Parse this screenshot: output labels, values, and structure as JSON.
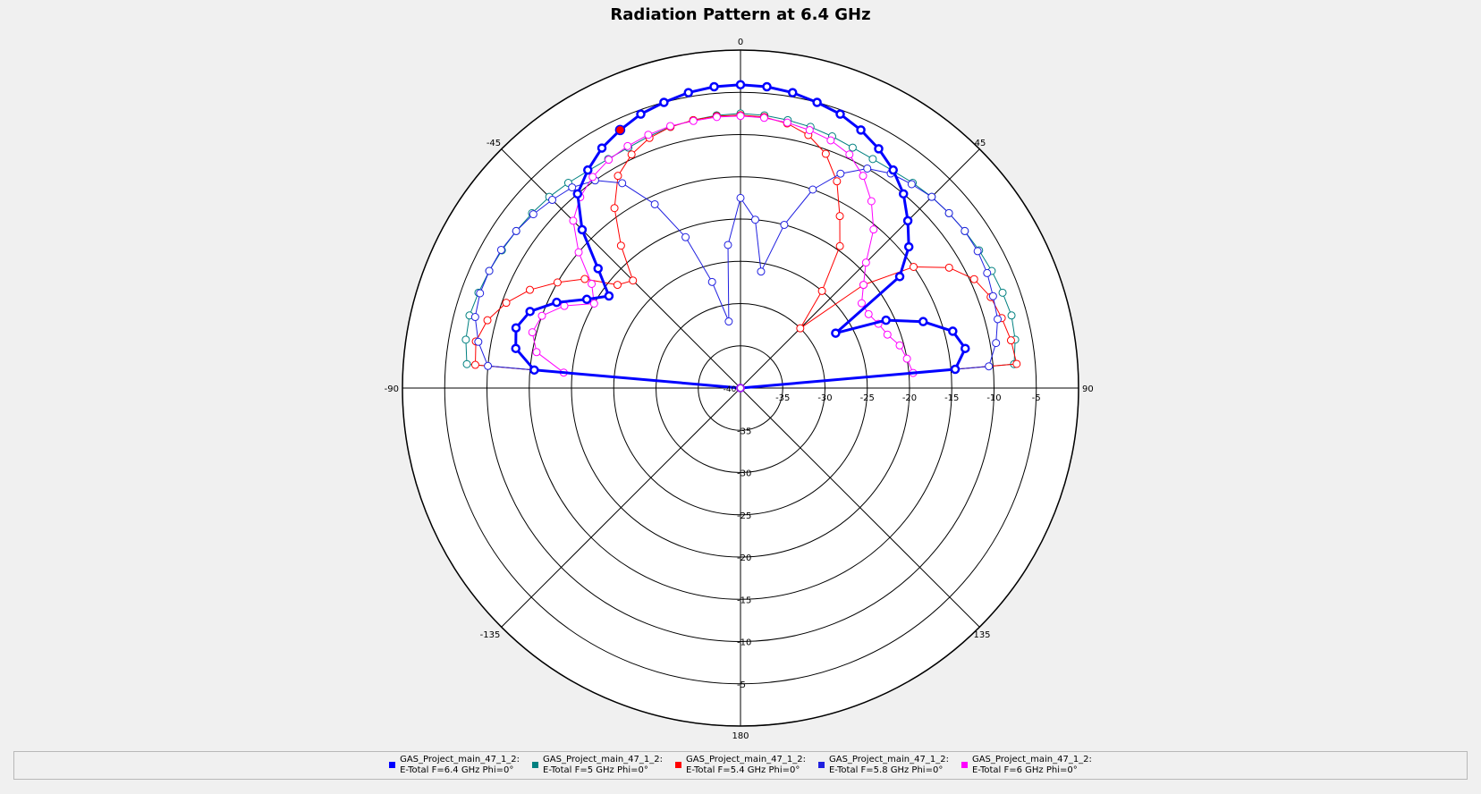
{
  "chart_data": {
    "type": "polar",
    "title": "Radiation Pattern at 6.4 GHz",
    "radial_range": [
      -40,
      0
    ],
    "radial_ticks_display": [
      "-35",
      "-30",
      "-25",
      "-20",
      "-15",
      "-10",
      "-5"
    ],
    "angle_ticks_display": [
      "0",
      "45",
      "90",
      "135",
      "180",
      "-135",
      "-90",
      "-45"
    ],
    "series": [
      {
        "name": "GAS_Project_main_47_1_2:",
        "sub": "E-Total  F=5 GHz  Phi=0°",
        "color": "#008080",
        "width": 1,
        "theta": [
          -90,
          -85,
          -80,
          -75,
          -70,
          -65,
          -60,
          -55,
          -50,
          -45,
          -40,
          -35,
          -30,
          -25,
          -20,
          -15,
          -10,
          -5,
          0,
          5,
          10,
          15,
          20,
          25,
          30,
          35,
          40,
          45,
          50,
          55,
          60,
          65,
          70,
          75,
          80,
          85,
          90
        ],
        "r": [
          -40,
          -7.5,
          -7.0,
          -6.8,
          -7.0,
          -7.2,
          -7.4,
          -7.6,
          -7.8,
          -8.0,
          -8.3,
          -8.6,
          -8.7,
          -8.6,
          -8.3,
          -8.0,
          -7.8,
          -7.6,
          -7.5,
          -7.6,
          -7.8,
          -8.0,
          -8.3,
          -8.6,
          -8.7,
          -8.6,
          -8.3,
          -8.0,
          -7.8,
          -7.6,
          -7.4,
          -7.2,
          -7.0,
          -6.8,
          -7.0,
          -7.5,
          -40
        ]
      },
      {
        "name": "GAS_Project_main_47_1_2:",
        "sub": "E-Total  F=5.4 GHz  Phi=0°",
        "color": "#ff0000",
        "width": 1,
        "theta": [
          -90,
          -85,
          -80,
          -75,
          -70,
          -65,
          -60,
          -55,
          -50,
          -45,
          -40,
          -35,
          -30,
          -25,
          -20,
          -15,
          -10,
          -5,
          0,
          5,
          10,
          15,
          20,
          25,
          30,
          35,
          40,
          45,
          50,
          55,
          60,
          65,
          70,
          75,
          80,
          85,
          90
        ],
        "r": [
          -40,
          -8.5,
          -8.2,
          -9.0,
          -10.5,
          -12.5,
          -15.0,
          -17.5,
          -21.0,
          -22.0,
          -18.0,
          -14.0,
          -11.0,
          -9.5,
          -8.5,
          -8.0,
          -7.8,
          -7.7,
          -7.7,
          -7.8,
          -8.2,
          -9.0,
          -10.5,
          -13.0,
          -16.5,
          -19.5,
          -25.0,
          -30.0,
          -21.0,
          -15.0,
          -11.5,
          -9.5,
          -8.5,
          -8.0,
          -7.5,
          -7.2,
          -40
        ]
      },
      {
        "name": "GAS_Project_main_47_1_2:",
        "sub": "E-Total  F=5.8 GHz  Phi=0°",
        "color": "#2020e0",
        "width": 1,
        "theta": [
          -90,
          -85,
          -80,
          -75,
          -70,
          -65,
          -60,
          -55,
          -50,
          -45,
          -40,
          -35,
          -30,
          -25,
          -20,
          -15,
          -10,
          -5,
          0,
          5,
          10,
          15,
          20,
          25,
          30,
          35,
          40,
          45,
          50,
          55,
          60,
          65,
          70,
          75,
          80,
          85,
          90
        ],
        "r": [
          -40,
          -10.0,
          -8.5,
          -7.5,
          -7.2,
          -7.2,
          -7.3,
          -7.6,
          -8.0,
          -8.5,
          -9.0,
          -10.0,
          -12.0,
          -16.0,
          -21.0,
          -27.0,
          -32.0,
          -23.0,
          -17.5,
          -20.0,
          -26.0,
          -20.0,
          -15.0,
          -12.0,
          -10.0,
          -9.0,
          -8.5,
          -8.0,
          -7.8,
          -7.6,
          -7.6,
          -7.8,
          -8.2,
          -8.5,
          -9.3,
          -10.5,
          -40
        ]
      },
      {
        "name": "GAS_Project_main_47_1_2:",
        "sub": "E-Total  F=6 GHz  Phi=0°",
        "color": "#ff00ff",
        "width": 1,
        "theta": [
          -90,
          -85,
          -80,
          -75,
          -70,
          -65,
          -60,
          -55,
          -50,
          -45,
          -40,
          -35,
          -30,
          -25,
          -20,
          -15,
          -10,
          -5,
          0,
          5,
          10,
          15,
          20,
          25,
          30,
          35,
          40,
          45,
          50,
          55,
          60,
          65,
          70,
          75,
          80,
          85,
          90
        ],
        "r": [
          -40,
          -19.0,
          -15.5,
          -14.5,
          -15.0,
          -17.0,
          -20.0,
          -18.5,
          -15.0,
          -12.0,
          -10.5,
          -9.5,
          -8.8,
          -8.4,
          -8.1,
          -7.9,
          -7.9,
          -7.8,
          -7.8,
          -7.9,
          -8.1,
          -8.4,
          -8.8,
          -9.5,
          -11.0,
          -13.0,
          -15.5,
          -19.0,
          -21.0,
          -22.5,
          -22.5,
          -22.0,
          -21.5,
          -20.5,
          -20.0,
          -19.5,
          -40
        ]
      },
      {
        "name": "GAS_Project_main_47_1_2:",
        "sub": "E-Total  F=6.4 GHz  Phi=0°",
        "color": "#0000ff",
        "width": 3,
        "theta": [
          -90,
          -85,
          -80,
          -75,
          -70,
          -65,
          -60,
          -55,
          -50,
          -45,
          -40,
          -35,
          -30,
          -25,
          -20,
          -15,
          -10,
          -5,
          0,
          5,
          10,
          15,
          20,
          25,
          30,
          35,
          40,
          45,
          50,
          55,
          60,
          65,
          70,
          75,
          80,
          85,
          90
        ],
        "r": [
          -40,
          -15.5,
          -13.0,
          -12.5,
          -13.5,
          -16.0,
          -19.0,
          -21.0,
          -18.0,
          -13.5,
          -10.0,
          -8.5,
          -7.2,
          -6.3,
          -5.5,
          -5.0,
          -4.5,
          -4.2,
          -4.1,
          -4.2,
          -4.5,
          -5.0,
          -5.5,
          -6.3,
          -7.3,
          -8.5,
          -10.0,
          -12.0,
          -14.0,
          -17.0,
          -27.0,
          -21.0,
          -17.0,
          -14.0,
          -13.0,
          -14.5,
          -40
        ]
      }
    ],
    "marker_point": {
      "series": "GAS_Project_main_47_1_2:",
      "theta": -25,
      "r": -6.3
    },
    "legend_placement": "bottom"
  }
}
